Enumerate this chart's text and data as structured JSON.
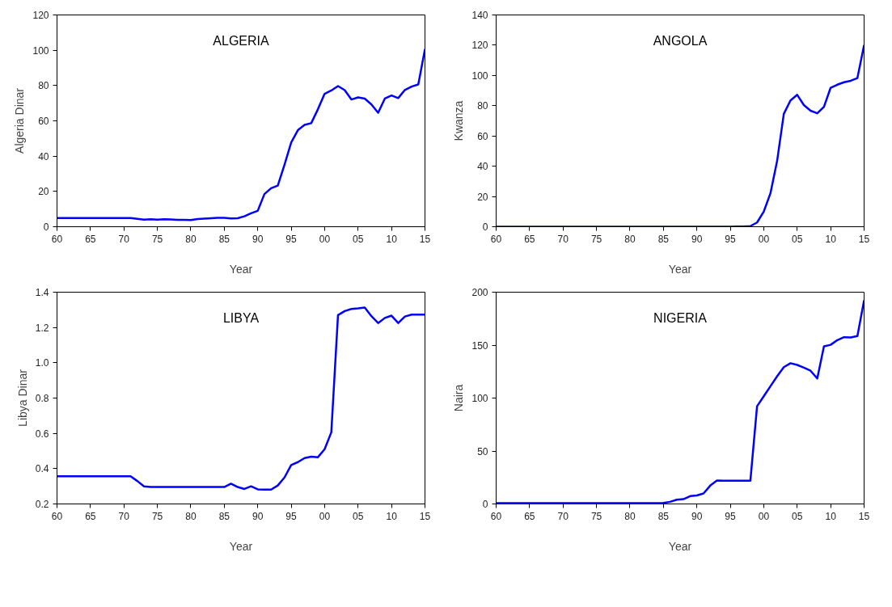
{
  "chart_data": [
    {
      "type": "line",
      "title": "ALGERIA",
      "xlabel": "Year",
      "ylabel": "Algeria Dinar",
      "x": [
        1960,
        1961,
        1962,
        1963,
        1964,
        1965,
        1966,
        1967,
        1968,
        1969,
        1970,
        1971,
        1972,
        1973,
        1974,
        1975,
        1976,
        1977,
        1978,
        1979,
        1980,
        1981,
        1982,
        1983,
        1984,
        1985,
        1986,
        1987,
        1988,
        1989,
        1990,
        1991,
        1992,
        1993,
        1994,
        1995,
        1996,
        1997,
        1998,
        1999,
        2000,
        2001,
        2002,
        2003,
        2004,
        2005,
        2006,
        2007,
        2008,
        2009,
        2010,
        2011,
        2012,
        2013,
        2014,
        2015
      ],
      "series": [
        {
          "color": "#0000ff",
          "values": [
            4.9,
            4.9,
            4.9,
            4.9,
            4.9,
            4.9,
            4.9,
            4.9,
            4.9,
            4.9,
            4.9,
            4.9,
            4.5,
            4.0,
            4.2,
            4.0,
            4.2,
            4.1,
            3.9,
            3.9,
            3.8,
            4.3,
            4.6,
            4.8,
            5.0,
            5.0,
            4.7,
            4.8,
            5.9,
            7.6,
            9.0,
            18.5,
            21.8,
            23.3,
            35.1,
            47.7,
            54.7,
            57.7,
            58.7,
            66.6,
            75.3,
            77.2,
            79.7,
            77.4,
            72.1,
            73.3,
            72.6,
            69.3,
            64.6,
            72.6,
            74.4,
            72.9,
            77.5,
            79.4,
            80.6,
            100.7
          ]
        }
      ],
      "xlim": [
        1960,
        2015
      ],
      "xticks": [
        {
          "value": 1960,
          "label": "60"
        },
        {
          "value": 1965,
          "label": "65"
        },
        {
          "value": 1970,
          "label": "70"
        },
        {
          "value": 1975,
          "label": "75"
        },
        {
          "value": 1980,
          "label": "80"
        },
        {
          "value": 1985,
          "label": "85"
        },
        {
          "value": 1990,
          "label": "90"
        },
        {
          "value": 1995,
          "label": "95"
        },
        {
          "value": 2000,
          "label": "00"
        },
        {
          "value": 2005,
          "label": "05"
        },
        {
          "value": 2010,
          "label": "10"
        },
        {
          "value": 2015,
          "label": "15"
        }
      ],
      "ylim": [
        0,
        120
      ],
      "yticks": [
        0,
        20,
        40,
        60,
        80,
        100,
        120
      ]
    },
    {
      "type": "line",
      "title": "ANGOLA",
      "xlabel": "Year",
      "ylabel": "Kwanza",
      "x": [
        1960,
        1961,
        1962,
        1963,
        1964,
        1965,
        1966,
        1967,
        1968,
        1969,
        1970,
        1971,
        1972,
        1973,
        1974,
        1975,
        1976,
        1977,
        1978,
        1979,
        1980,
        1981,
        1982,
        1983,
        1984,
        1985,
        1986,
        1987,
        1988,
        1989,
        1990,
        1991,
        1992,
        1993,
        1994,
        1995,
        1996,
        1997,
        1998,
        1999,
        2000,
        2001,
        2002,
        2003,
        2004,
        2005,
        2006,
        2007,
        2008,
        2009,
        2010,
        2011,
        2012,
        2013,
        2014,
        2015
      ],
      "series": [
        {
          "color": "#0000ff",
          "values": [
            0,
            0,
            0,
            0,
            0,
            0,
            0,
            0,
            0,
            0,
            0,
            0,
            0,
            0,
            0,
            0,
            0,
            0,
            0,
            0,
            0,
            0,
            0,
            0,
            0,
            0,
            0,
            0,
            0,
            0,
            0,
            0,
            0,
            0,
            0,
            0,
            0.1,
            0.2,
            0.4,
            2.8,
            10.0,
            22.1,
            43.5,
            74.6,
            83.5,
            87.2,
            80.4,
            76.7,
            75.0,
            79.3,
            91.9,
            93.9,
            95.5,
            96.5,
            98.3,
            120.1
          ]
        }
      ],
      "xlim": [
        1960,
        2015
      ],
      "xticks": [
        {
          "value": 1960,
          "label": "60"
        },
        {
          "value": 1965,
          "label": "65"
        },
        {
          "value": 1970,
          "label": "70"
        },
        {
          "value": 1975,
          "label": "75"
        },
        {
          "value": 1980,
          "label": "80"
        },
        {
          "value": 1985,
          "label": "85"
        },
        {
          "value": 1990,
          "label": "90"
        },
        {
          "value": 1995,
          "label": "95"
        },
        {
          "value": 2000,
          "label": "00"
        },
        {
          "value": 2005,
          "label": "05"
        },
        {
          "value": 2010,
          "label": "10"
        },
        {
          "value": 2015,
          "label": "15"
        }
      ],
      "ylim": [
        0,
        140
      ],
      "yticks": [
        0,
        20,
        40,
        60,
        80,
        100,
        120,
        140
      ]
    },
    {
      "type": "line",
      "title": "LIBYA",
      "xlabel": "Year",
      "ylabel": "Libya Dinar",
      "x": [
        1960,
        1961,
        1962,
        1963,
        1964,
        1965,
        1966,
        1967,
        1968,
        1969,
        1970,
        1971,
        1972,
        1973,
        1974,
        1975,
        1976,
        1977,
        1978,
        1979,
        1980,
        1981,
        1982,
        1983,
        1984,
        1985,
        1986,
        1987,
        1988,
        1989,
        1990,
        1991,
        1992,
        1993,
        1994,
        1995,
        1996,
        1997,
        1998,
        1999,
        2000,
        2001,
        2002,
        2003,
        2004,
        2005,
        2006,
        2007,
        2008,
        2009,
        2010,
        2011,
        2012,
        2013,
        2014,
        2015
      ],
      "series": [
        {
          "color": "#0000ff",
          "values": [
            0.357,
            0.357,
            0.357,
            0.357,
            0.357,
            0.357,
            0.357,
            0.357,
            0.357,
            0.357,
            0.357,
            0.357,
            0.33,
            0.3,
            0.296,
            0.296,
            0.296,
            0.296,
            0.296,
            0.296,
            0.296,
            0.296,
            0.296,
            0.296,
            0.296,
            0.296,
            0.315,
            0.296,
            0.285,
            0.3,
            0.283,
            0.281,
            0.281,
            0.305,
            0.35,
            0.42,
            0.437,
            0.46,
            0.468,
            0.465,
            0.51,
            0.606,
            1.27,
            1.293,
            1.305,
            1.308,
            1.313,
            1.264,
            1.225,
            1.254,
            1.267,
            1.225,
            1.262,
            1.273,
            1.273,
            1.273
          ]
        }
      ],
      "xlim": [
        1960,
        2015
      ],
      "xticks": [
        {
          "value": 1960,
          "label": "60"
        },
        {
          "value": 1965,
          "label": "65"
        },
        {
          "value": 1970,
          "label": "70"
        },
        {
          "value": 1975,
          "label": "75"
        },
        {
          "value": 1980,
          "label": "80"
        },
        {
          "value": 1985,
          "label": "85"
        },
        {
          "value": 1990,
          "label": "90"
        },
        {
          "value": 1995,
          "label": "95"
        },
        {
          "value": 2000,
          "label": "00"
        },
        {
          "value": 2005,
          "label": "05"
        },
        {
          "value": 2010,
          "label": "10"
        },
        {
          "value": 2015,
          "label": "15"
        }
      ],
      "ylim": [
        0.2,
        1.4
      ],
      "yticks": [
        0.2,
        0.4,
        0.6,
        0.8,
        {
          "value": 1.0,
          "label": "1.0"
        },
        1.2,
        1.4
      ]
    },
    {
      "type": "line",
      "title": "NIGERIA",
      "xlabel": "Year",
      "ylabel": "Naira",
      "x": [
        1960,
        1961,
        1962,
        1963,
        1964,
        1965,
        1966,
        1967,
        1968,
        1969,
        1970,
        1971,
        1972,
        1973,
        1974,
        1975,
        1976,
        1977,
        1978,
        1979,
        1980,
        1981,
        1982,
        1983,
        1984,
        1985,
        1986,
        1987,
        1988,
        1989,
        1990,
        1991,
        1992,
        1993,
        1994,
        1995,
        1996,
        1997,
        1998,
        1999,
        2000,
        2001,
        2002,
        2003,
        2004,
        2005,
        2006,
        2007,
        2008,
        2009,
        2010,
        2011,
        2012,
        2013,
        2014,
        2015
      ],
      "series": [
        {
          "color": "#0000ff",
          "values": [
            0.7,
            0.7,
            0.7,
            0.7,
            0.7,
            0.7,
            0.7,
            0.7,
            0.7,
            0.7,
            0.7,
            0.7,
            0.7,
            0.7,
            0.7,
            0.7,
            0.7,
            0.7,
            0.7,
            0.7,
            0.7,
            0.7,
            0.7,
            0.7,
            0.7,
            0.9,
            2.0,
            4.0,
            4.5,
            7.4,
            8.0,
            9.9,
            17.3,
            22.1,
            22.0,
            21.9,
            21.9,
            21.9,
            21.9,
            92.3,
            101.7,
            111.2,
            120.6,
            129.2,
            132.9,
            131.3,
            128.7,
            125.8,
            118.5,
            148.9,
            150.3,
            154.7,
            157.5,
            157.3,
            158.6,
            192.4
          ]
        }
      ],
      "xlim": [
        1960,
        2015
      ],
      "xticks": [
        {
          "value": 1960,
          "label": "60"
        },
        {
          "value": 1965,
          "label": "65"
        },
        {
          "value": 1970,
          "label": "70"
        },
        {
          "value": 1975,
          "label": "75"
        },
        {
          "value": 1980,
          "label": "80"
        },
        {
          "value": 1985,
          "label": "85"
        },
        {
          "value": 1990,
          "label": "90"
        },
        {
          "value": 1995,
          "label": "95"
        },
        {
          "value": 2000,
          "label": "00"
        },
        {
          "value": 2005,
          "label": "05"
        },
        {
          "value": 2010,
          "label": "10"
        },
        {
          "value": 2015,
          "label": "15"
        }
      ],
      "ylim": [
        0,
        200
      ],
      "yticks": [
        0,
        50,
        100,
        150,
        200
      ]
    }
  ]
}
